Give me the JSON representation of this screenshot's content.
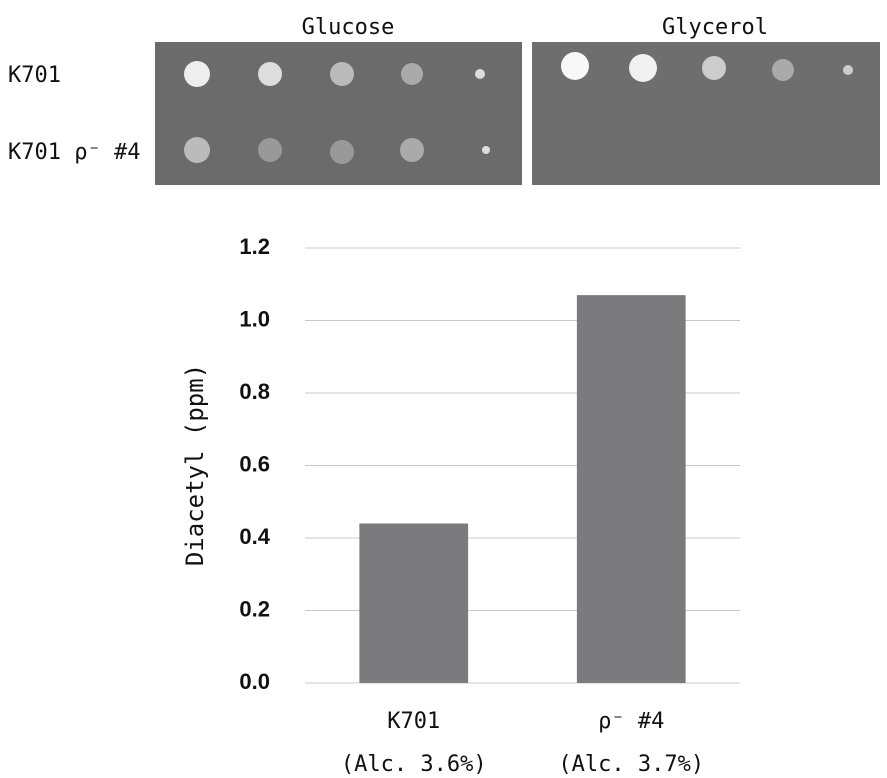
{
  "plates": {
    "media": [
      "Glucose",
      "Glycerol"
    ],
    "strains": [
      "K701",
      "K701 ρ⁻ #4"
    ]
  },
  "chart_data": {
    "type": "bar",
    "y_label": "Diacetyl (ppm)",
    "categories": [
      "K701",
      "ρ⁻ #4"
    ],
    "category_notes": [
      "(Alc. 3.6%)",
      "(Alc. 3.7%)"
    ],
    "values": [
      0.44,
      1.07
    ],
    "color": "#7b7b7d",
    "ylim": [
      0,
      1.2
    ],
    "yticks": [
      {
        "value": 0,
        "label": "0.0"
      },
      0.2,
      0.4,
      0.6,
      0.8,
      {
        "value": 1,
        "label": "1.0"
      },
      1.2
    ],
    "grid": true
  }
}
